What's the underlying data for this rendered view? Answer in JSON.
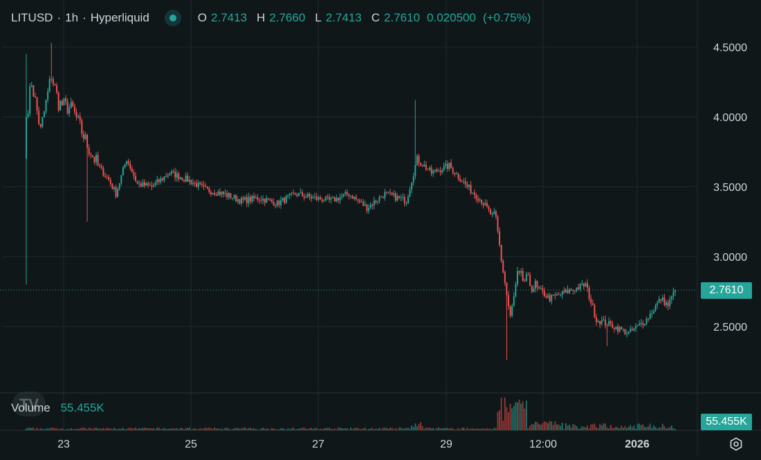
{
  "header": {
    "symbol": "LITUSD",
    "interval": "1h",
    "exchange": "Hyperliquid",
    "separator": "·",
    "open_label": "O",
    "open": "2.7413",
    "high_label": "H",
    "high": "2.7660",
    "low_label": "L",
    "low": "2.7413",
    "close_label": "C",
    "close": "2.7610",
    "change": "0.020500",
    "change_pct": "(+0.75%)"
  },
  "volume": {
    "label": "Volume",
    "value": "55.455K"
  },
  "price_axis": {
    "ticks": [
      "4.5000",
      "4.0000",
      "3.5000",
      "3.0000",
      "2.5000"
    ],
    "last_price": "2.7610"
  },
  "time_axis": {
    "ticks": [
      "23",
      "25",
      "27",
      "29",
      "12:00",
      "2026"
    ]
  },
  "colors": {
    "up": "#26a69a",
    "down": "#ef5350",
    "background": "#0f1719",
    "grid": "#1f2b2e",
    "text": "#d1d4dc"
  },
  "icons": {
    "settings": "gear-icon",
    "status": "live-dot-icon",
    "logo": "tradingview-logo"
  },
  "chart_data": {
    "type": "line",
    "chart_style": "candlestick",
    "title": "LITUSD · 1h · Hyperliquid",
    "xlabel": "",
    "ylabel": "",
    "ylim": [
      2.05,
      4.6
    ],
    "y_ticks": [
      4.5,
      4.0,
      3.5,
      3.0,
      2.5
    ],
    "x_ticks": [
      "23",
      "25",
      "27",
      "29",
      "12:00",
      "2026"
    ],
    "grid": true,
    "series": [
      {
        "name": "LITUSD",
        "x_start": "2025-12-22 11:00",
        "x_step": "1h",
        "close_anchors": [
          [
            0,
            4.0
          ],
          [
            3,
            4.25
          ],
          [
            8,
            3.9
          ],
          [
            14,
            4.3
          ],
          [
            18,
            4.1
          ],
          [
            26,
            4.05
          ],
          [
            34,
            3.8
          ],
          [
            40,
            3.65
          ],
          [
            46,
            3.55
          ],
          [
            50,
            3.45
          ],
          [
            56,
            3.7
          ],
          [
            62,
            3.52
          ],
          [
            70,
            3.5
          ],
          [
            80,
            3.6
          ],
          [
            90,
            3.55
          ],
          [
            100,
            3.48
          ],
          [
            110,
            3.45
          ],
          [
            120,
            3.4
          ],
          [
            130,
            3.42
          ],
          [
            140,
            3.38
          ],
          [
            150,
            3.45
          ],
          [
            160,
            3.42
          ],
          [
            170,
            3.4
          ],
          [
            180,
            3.45
          ],
          [
            190,
            3.35
          ],
          [
            200,
            3.45
          ],
          [
            212,
            3.4
          ],
          [
            218,
            3.7
          ],
          [
            226,
            3.6
          ],
          [
            236,
            3.65
          ],
          [
            246,
            3.5
          ],
          [
            254,
            3.4
          ],
          [
            262,
            3.25
          ],
          [
            266,
            2.9
          ],
          [
            270,
            2.55
          ],
          [
            274,
            2.85
          ],
          [
            282,
            2.8
          ],
          [
            292,
            2.7
          ],
          [
            302,
            2.75
          ],
          [
            312,
            2.8
          ],
          [
            318,
            2.55
          ],
          [
            328,
            2.5
          ],
          [
            336,
            2.45
          ],
          [
            346,
            2.55
          ],
          [
            354,
            2.7
          ],
          [
            358,
            2.65
          ],
          [
            362,
            2.761
          ]
        ]
      }
    ],
    "annotations": [
      {
        "text": "2.7610",
        "y": 2.761,
        "note": "last price"
      }
    ]
  }
}
